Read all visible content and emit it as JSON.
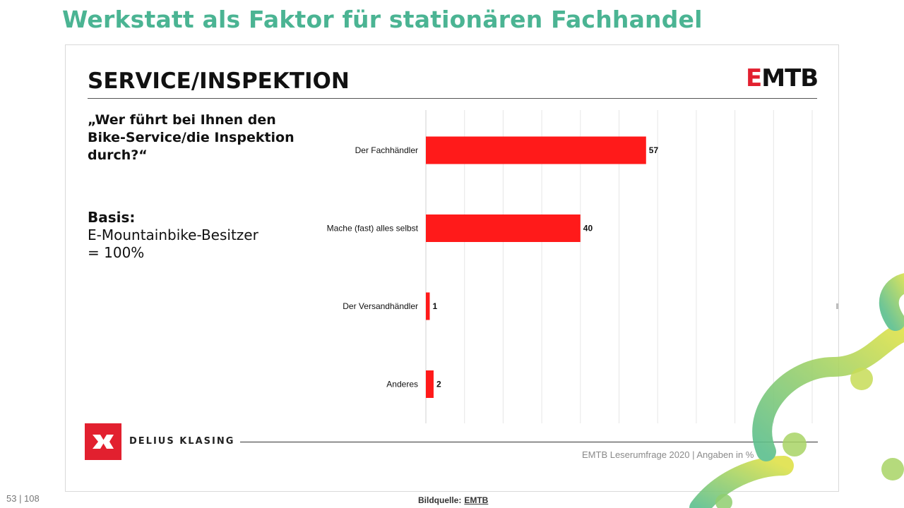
{
  "page": {
    "title": "Werkstatt als Faktor für stationären Fachhandel",
    "page_number": "53 | 108",
    "image_credit_label": "Bildquelle:",
    "image_credit_source": "EMTB"
  },
  "slide": {
    "heading": "SERVICE/INSPEKTION",
    "brand_logo_accent": "E",
    "brand_logo_rest": "MTB",
    "question": "„Wer führt bei Ihnen den Bike-Service/die Inspektion durch?“",
    "basis_label": "Basis:",
    "basis_line1": "E-Mountainbike-Besitzer",
    "basis_line2": "= 100%",
    "publisher_name": "DELIUS KLASING",
    "source_note": "EMTB Leserumfrage 2020 | Angaben in %"
  },
  "colors": {
    "title": "#4bb493",
    "bar": "#ff1a1a",
    "logo_red": "#e2202f"
  },
  "chart_data": {
    "type": "bar",
    "orientation": "horizontal",
    "categories": [
      "Der Fachhändler",
      "Mache (fast) alles selbst",
      "Der Versandhändler",
      "Anderes"
    ],
    "values": [
      57,
      40,
      1,
      2
    ],
    "data_labels": [
      "57",
      "40",
      "1",
      "2"
    ],
    "xlim": [
      0,
      100
    ],
    "grid": true,
    "legend": "none"
  }
}
